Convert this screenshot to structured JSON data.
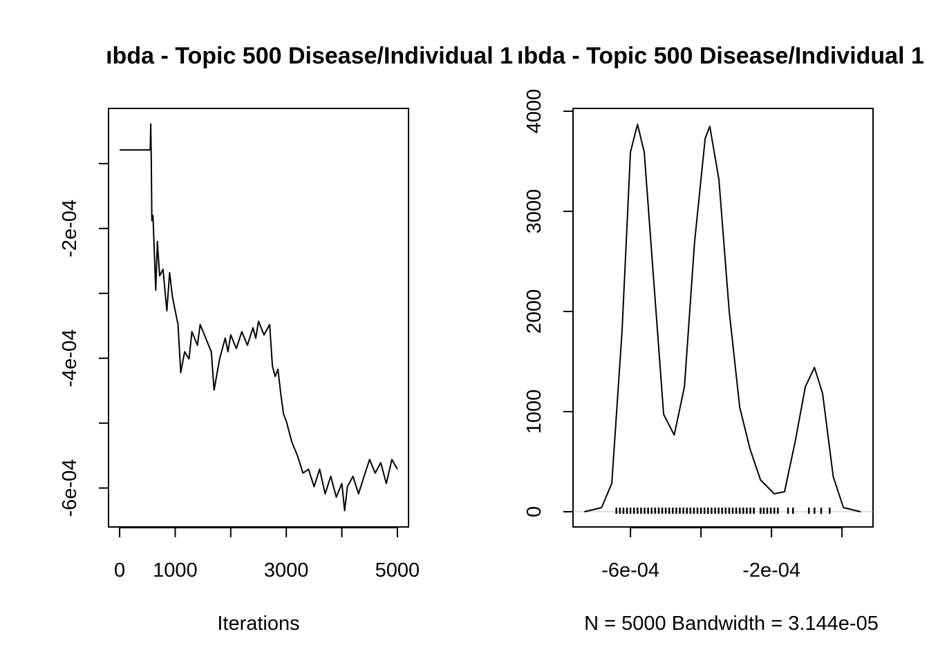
{
  "chart_data": [
    {
      "type": "line",
      "title": "ıbda - Topic 500 Disease/Individual 1",
      "xlabel": "Iterations",
      "color": "#000000",
      "x": [
        0,
        550,
        560,
        570,
        580,
        600,
        650,
        680,
        720,
        780,
        850,
        900,
        950,
        1050,
        1100,
        1170,
        1250,
        1300,
        1400,
        1450,
        1550,
        1650,
        1700,
        1800,
        1900,
        1950,
        2000,
        2100,
        2200,
        2300,
        2400,
        2450,
        2500,
        2600,
        2700,
        2750,
        2800,
        2850,
        2900,
        2950,
        3000,
        3100,
        3200,
        3300,
        3400,
        3500,
        3600,
        3700,
        3800,
        3900,
        4000,
        4050,
        4100,
        4200,
        4300,
        4400,
        4500,
        4600,
        4700,
        4800,
        4900,
        5000
      ],
      "values": [
        -7.9e-05,
        -7.9e-05,
        -3.9e-05,
        -9.8e-05,
        -0.000188,
        -0.00018,
        -0.000295,
        -0.00022,
        -0.000273,
        -0.000263,
        -0.000327,
        -0.000268,
        -0.000305,
        -0.000348,
        -0.000422,
        -0.00039,
        -0.000401,
        -0.000359,
        -0.00038,
        -0.000348,
        -0.000369,
        -0.00039,
        -0.000449,
        -0.000401,
        -0.000369,
        -0.00039,
        -0.000364,
        -0.000385,
        -0.000359,
        -0.00038,
        -0.000353,
        -0.000369,
        -0.000343,
        -0.000364,
        -0.000348,
        -0.000412,
        -0.000428,
        -0.000417,
        -0.000454,
        -0.000486,
        -0.000497,
        -0.000529,
        -0.00055,
        -0.000577,
        -0.000571,
        -0.000598,
        -0.000571,
        -0.000609,
        -0.000582,
        -0.000614,
        -0.000593,
        -0.000635,
        -0.000598,
        -0.000582,
        -0.000609,
        -0.000582,
        -0.000556,
        -0.000577,
        -0.000561,
        -0.000593,
        -0.000556,
        -0.000571
      ],
      "xlim": [
        -200,
        5200
      ],
      "ylim": [
        -0.00066,
        -1.5e-05
      ],
      "xticks": [
        0,
        1000,
        {
          "value": 2000,
          "label": null
        },
        3000,
        {
          "value": 4000,
          "label": null
        },
        5000
      ],
      "yticks": [
        {
          "value": -0.0006,
          "label": "-6e-04"
        },
        {
          "value": -0.0005,
          "label": null
        },
        {
          "value": -0.0004,
          "label": "-4e-04"
        },
        {
          "value": -0.0003,
          "label": null
        },
        {
          "value": -0.0002,
          "label": "-2e-04"
        },
        {
          "value": -0.0001,
          "label": null
        }
      ]
    },
    {
      "type": "density",
      "title": "ıbda - Topic 500 Disease/Individual 1",
      "xlabel": "N = 5000   Bandwidth = 3.144e-05",
      "color": "#000000",
      "x": [
        -0.000731,
        -0.000682,
        -0.000653,
        -0.000624,
        -0.0006,
        -0.00058,
        -0.000561,
        -0.000535,
        -0.000506,
        -0.000476,
        -0.000447,
        -0.000418,
        -0.000388,
        -0.000375,
        -0.000349,
        -0.00032,
        -0.00029,
        -0.000261,
        -0.000231,
        -0.000192,
        -0.000163,
        -0.000133,
        -0.000104,
        -7.8e-05,
        -5.5e-05,
        -2.5e-05,
        4e-06,
        5.3e-05
      ],
      "values": [
        0,
        41,
        283,
        1800,
        3593,
        3869,
        3593,
        2352,
        972,
        766,
        1248,
        2697,
        3731,
        3848,
        3317,
        2007,
        1041,
        628,
        317,
        179,
        200,
        697,
        1248,
        1441,
        1179,
        352,
        41,
        0
      ],
      "rug": [
        -0.00064,
        -0.00063,
        -0.00062,
        -0.00061,
        -0.0006,
        -0.00059,
        -0.00058,
        -0.00057,
        -0.00056,
        -0.00055,
        -0.00054,
        -0.00053,
        -0.00052,
        -0.00051,
        -0.0005,
        -0.00049,
        -0.00048,
        -0.00047,
        -0.00046,
        -0.00045,
        -0.00044,
        -0.00043,
        -0.00042,
        -0.00041,
        -0.0004,
        -0.00039,
        -0.00038,
        -0.00037,
        -0.00036,
        -0.00035,
        -0.00034,
        -0.00033,
        -0.00032,
        -0.00031,
        -0.0003,
        -0.00029,
        -0.00028,
        -0.00027,
        -0.00026,
        -0.00025,
        -0.000231,
        -0.000222,
        -0.000212,
        -0.000202,
        -0.000192,
        -0.000182,
        -0.000153,
        -0.000139,
        -9.4e-05,
        -7.8e-05,
        -5.9e-05,
        -3.5e-05
      ],
      "xlim": [
        -0.000763,
        8.8e-05
      ],
      "ylim": [
        -152,
        4028
      ],
      "xticks": [
        {
          "value": -0.0006,
          "label": "-6e-04"
        },
        {
          "value": -0.0004,
          "label": null
        },
        {
          "value": -0.0002,
          "label": "-2e-04"
        },
        {
          "value": 0,
          "label": null
        }
      ],
      "yticks": [
        0,
        1000,
        2000,
        3000,
        4000
      ]
    }
  ]
}
